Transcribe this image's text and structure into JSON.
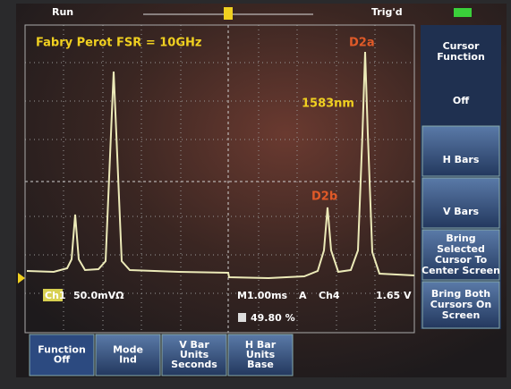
{
  "status": {
    "run": "Run",
    "trigger": "Trig'd"
  },
  "annotations": {
    "title": "Fabry Perot FSR = 10GHz",
    "peak_a": "D2a",
    "wavelength": "1583nm",
    "peak_b": "D2b"
  },
  "readout": {
    "channel": "Ch1",
    "scale": "50.0mVΩ",
    "timebase": "M1.00ms",
    "trigger_mode": "A",
    "trigger_source": "Ch4",
    "trigger_level": "1.65 V",
    "position": "49.80 %"
  },
  "menu": [
    {
      "lines": [
        "Cursor",
        "Function"
      ]
    },
    {
      "lines": [
        "Off"
      ]
    },
    {
      "lines": [
        "H Bars"
      ]
    },
    {
      "lines": [
        "V Bars"
      ]
    },
    {
      "lines": [
        "Bring",
        "Selected",
        "Cursor To",
        "Center Screen"
      ]
    },
    {
      "lines": [
        "Bring Both",
        "Cursors On",
        "Screen"
      ]
    }
  ],
  "buttons": [
    {
      "lines": [
        "Function",
        "Off"
      ]
    },
    {
      "lines": [
        "Mode",
        "Ind"
      ]
    },
    {
      "lines": [
        "V Bar",
        "Units",
        "Seconds"
      ]
    },
    {
      "lines": [
        "H Bar",
        "Units",
        "Base"
      ]
    }
  ]
}
